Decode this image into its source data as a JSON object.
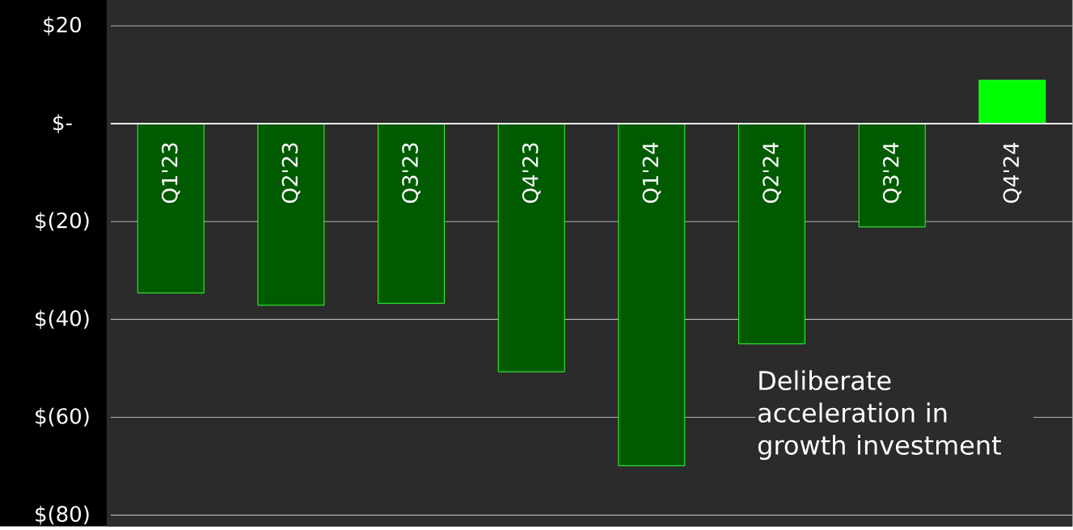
{
  "chart_data": {
    "type": "bar",
    "categories": [
      "Q1'23",
      "Q2'23",
      "Q3'23",
      "Q4'23",
      "Q1'24",
      "Q2'24",
      "Q3'24",
      "Q4'24"
    ],
    "values": [
      -34.6,
      -37.1,
      -36.7,
      -50.7,
      -69.9,
      -45.0,
      -21.1,
      8.9
    ],
    "colors": [
      "#005a00",
      "#005a00",
      "#005a00",
      "#005a00",
      "#005a00",
      "#005a00",
      "#005a00",
      "#00ff00"
    ],
    "ylim": [
      -80,
      20
    ],
    "yticks": [
      {
        "value": -80,
        "label": "$(80)"
      },
      {
        "value": -60,
        "label": "$(60)"
      },
      {
        "value": -40,
        "label": "$(40)"
      },
      {
        "value": -20,
        "label": "$(20)"
      },
      {
        "value": 0,
        "label": "$-"
      },
      {
        "value": 20,
        "label": "$20"
      }
    ],
    "grid": "y",
    "annotations": [
      "Deliberate acceleration in growth investment"
    ]
  }
}
